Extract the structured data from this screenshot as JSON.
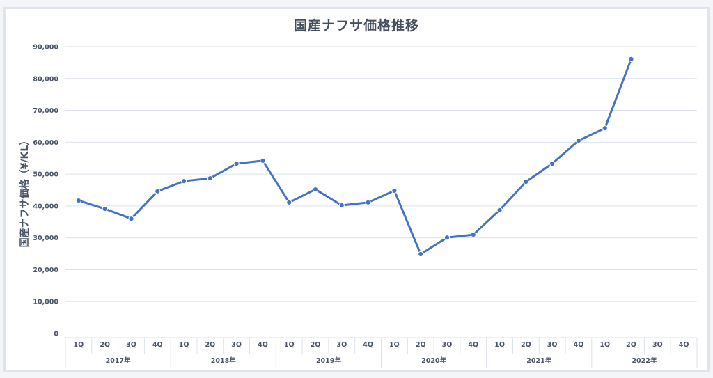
{
  "chart_data": {
    "type": "line",
    "title": "国産ナフサ価格推移",
    "xlabel": "",
    "ylabel": "国産ナフサ価格（¥/KL）",
    "ylim": [
      0,
      90000
    ],
    "yticks": [
      0,
      10000,
      20000,
      30000,
      40000,
      50000,
      60000,
      70000,
      80000,
      90000
    ],
    "ytick_labels": [
      "0",
      "10,000",
      "20,000",
      "30,000",
      "40,000",
      "50,000",
      "60,000",
      "70,000",
      "80,000",
      "90,000"
    ],
    "grid": true,
    "legend": "none",
    "line_color": "#4472c4",
    "groups": [
      "2017年",
      "2018年",
      "2019年",
      "2020年",
      "2021年",
      "2022年"
    ],
    "quarters": [
      "1Q",
      "2Q",
      "3Q",
      "4Q"
    ],
    "categories": [
      "2017年 1Q",
      "2017年 2Q",
      "2017年 3Q",
      "2017年 4Q",
      "2018年 1Q",
      "2018年 2Q",
      "2018年 3Q",
      "2018年 4Q",
      "2019年 1Q",
      "2019年 2Q",
      "2019年 3Q",
      "2019年 4Q",
      "2020年 1Q",
      "2020年 2Q",
      "2020年 3Q",
      "2020年 4Q",
      "2021年 1Q",
      "2021年 2Q",
      "2021年 3Q",
      "2021年 4Q",
      "2022年 1Q",
      "2022年 2Q",
      "2022年 3Q",
      "2022年 4Q"
    ],
    "series": [
      {
        "name": "国産ナフサ価格",
        "values": [
          41700,
          39100,
          36000,
          44600,
          47800,
          48700,
          53300,
          54200,
          41100,
          45200,
          40200,
          41100,
          44800,
          24900,
          30100,
          31000,
          38700,
          47600,
          53300,
          60500,
          64400,
          86100,
          null,
          null
        ]
      }
    ]
  }
}
